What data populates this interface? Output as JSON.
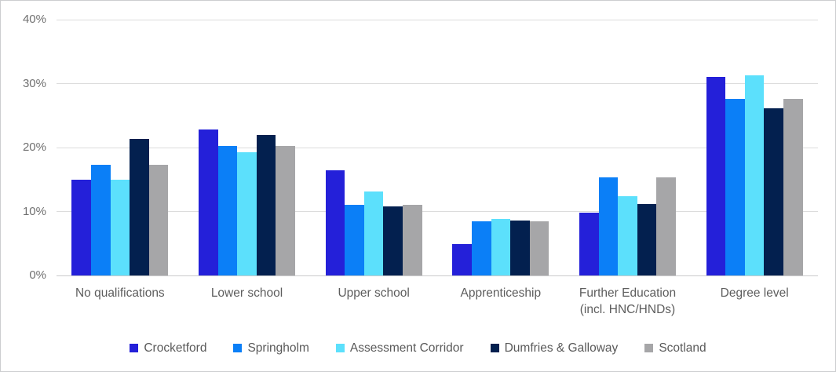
{
  "chart_data": {
    "type": "bar",
    "title": "",
    "categories": [
      "No qualifications",
      "Lower school",
      "Upper school",
      "Apprenticeship",
      "Further Education\n(incl. HNC/HNDs)",
      "Degree level"
    ],
    "series": [
      {
        "name": "Crocketford",
        "color": "#2420d9",
        "values": [
          15.0,
          22.8,
          16.4,
          4.9,
          9.8,
          31.1
        ]
      },
      {
        "name": "Springholm",
        "color": "#0b7ff7",
        "values": [
          17.3,
          20.2,
          11.0,
          8.5,
          15.4,
          27.6
        ]
      },
      {
        "name": "Assessment Corridor",
        "color": "#5ce0fc",
        "values": [
          15.0,
          19.3,
          13.1,
          8.8,
          12.4,
          31.3
        ]
      },
      {
        "name": "Dumfries & Galloway",
        "color": "#03204f",
        "values": [
          21.3,
          22.0,
          10.8,
          8.6,
          11.2,
          26.1
        ]
      },
      {
        "name": "Scotland",
        "color": "#a6a6a8",
        "values": [
          17.3,
          20.2,
          11.0,
          8.5,
          15.4,
          27.6
        ]
      }
    ],
    "y_axis": {
      "min": 0,
      "max": 40,
      "step": 10,
      "tick_labels": [
        "0%",
        "10%",
        "20%",
        "30%",
        "40%"
      ]
    },
    "grid": true,
    "legend_position": "bottom",
    "styles": {
      "gridline_color": "#dcdcdc",
      "baseline_color": "#c9cacb",
      "axis_label_color": "#6f6f6f",
      "category_label_color": "#5d5d5d",
      "legend_label_color": "#5a5a5a",
      "frame_border_color": "#cdced0",
      "background": "#ffffff"
    }
  }
}
